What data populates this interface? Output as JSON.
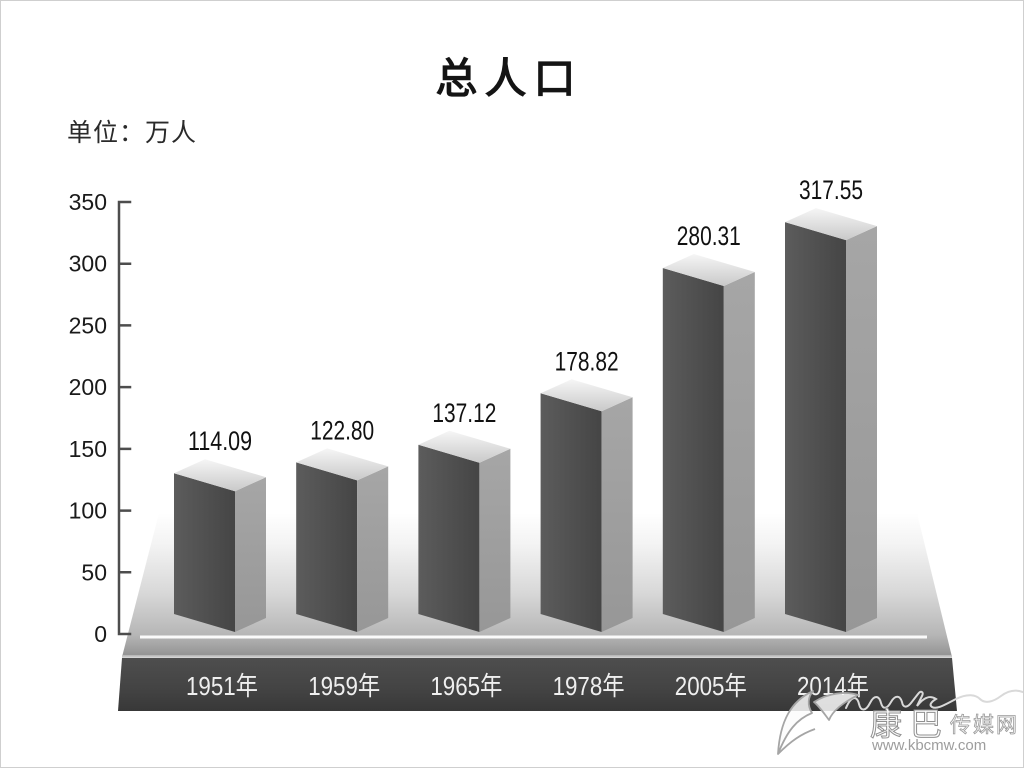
{
  "title": "总人口",
  "unit_label": "单位：万人",
  "watermark": {
    "site_name": "康巴传媒网",
    "site_name_large": "康巴",
    "site_name_small": "传媒网",
    "url": "www.kbcmw.com"
  },
  "colors": {
    "bar_front_light": "#5c5c5c",
    "bar_front_dark": "#454545",
    "bar_side": "#9d9d9d",
    "bar_top_light": "#f6f6f6",
    "bar_top_dark": "#c9c9c9",
    "floor_top": "#ffffff",
    "floor_bottom": "#8f8f8f",
    "plinth_top": "#4e4e4e",
    "plinth_bottom": "#383838",
    "plinth_highlight": "#c6c6c6",
    "zero_line": "#fafafa",
    "axis": "#4d4d4d",
    "tick_label": "#1a1a1a",
    "value_label": "#111111",
    "year_label": "#efefef",
    "watermark_gray": "#a5a5a5"
  },
  "chart_data": {
    "type": "bar",
    "style": "3d-column",
    "title": "总人口",
    "unit": "万人",
    "ylabel": "单位：万人",
    "categories": [
      "1951年",
      "1959年",
      "1965年",
      "1978年",
      "2005年",
      "2014年"
    ],
    "values": [
      114.09,
      122.8,
      137.12,
      178.82,
      280.31,
      317.55
    ],
    "value_labels": [
      "114.09",
      "122.80",
      "137.12",
      "178.82",
      "280.31",
      "317.55"
    ],
    "yticks": [
      0,
      50,
      100,
      150,
      200,
      250,
      300,
      350
    ],
    "ylim": [
      0,
      350
    ],
    "xlabel": "",
    "grid": false,
    "legend": null
  }
}
